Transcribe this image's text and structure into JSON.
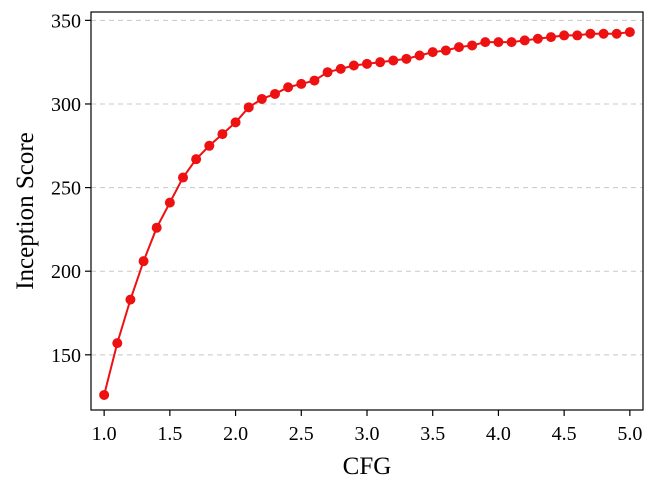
{
  "chart_data": {
    "type": "line",
    "xlabel": "CFG",
    "ylabel": "Inception Score",
    "xlim": [
      0.9,
      5.1
    ],
    "ylim": [
      117,
      355
    ],
    "xticks": [
      1.0,
      1.5,
      2.0,
      2.5,
      3.0,
      3.5,
      4.0,
      4.5,
      5.0
    ],
    "xtick_labels": [
      "1.0",
      "1.5",
      "2.0",
      "2.5",
      "3.0",
      "3.5",
      "4.0",
      "4.5",
      "5.0"
    ],
    "yticks": [
      150,
      200,
      250,
      300,
      350
    ],
    "ytick_labels": [
      "150",
      "200",
      "250",
      "300",
      "350"
    ],
    "grid": "horizontal-dashed",
    "colors": {
      "series": "#ee1111",
      "grid": "#c8c8c8"
    },
    "series": [
      {
        "x": [
          1.0,
          1.1,
          1.2,
          1.3,
          1.4,
          1.5,
          1.6,
          1.7,
          1.8,
          1.9,
          2.0,
          2.1,
          2.2,
          2.3,
          2.4,
          2.5,
          2.6,
          2.7,
          2.8,
          2.9,
          3.0,
          3.1,
          3.2,
          3.3,
          3.4,
          3.5,
          3.6,
          3.7,
          3.8,
          3.9,
          4.0,
          4.1,
          4.2,
          4.3,
          4.4,
          4.5,
          4.6,
          4.7,
          4.8,
          4.9,
          5.0
        ],
        "values": [
          126,
          157,
          183,
          206,
          226,
          241,
          256,
          267,
          275,
          282,
          289,
          298,
          303,
          306,
          310,
          312,
          314,
          319,
          321,
          323,
          324,
          325,
          326,
          327,
          329,
          331,
          332,
          334,
          335,
          337,
          337,
          337,
          338,
          339,
          340,
          341,
          341,
          342,
          342,
          342,
          343
        ]
      }
    ]
  }
}
